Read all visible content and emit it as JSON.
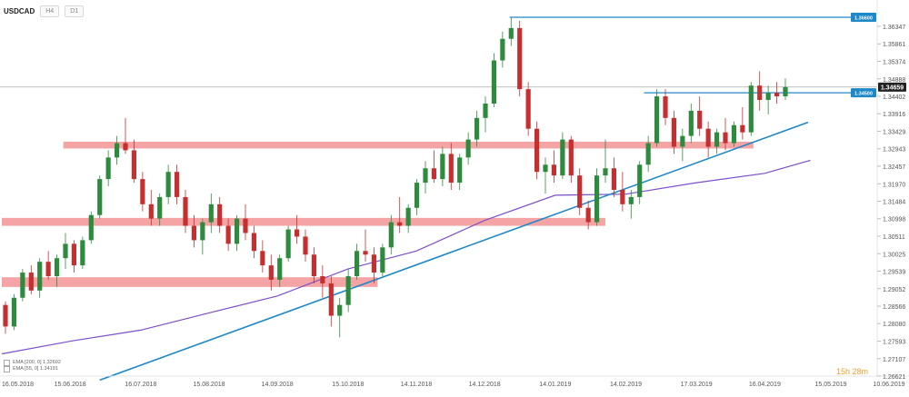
{
  "header": {
    "symbol": "USDCAD",
    "timeframe": "H4",
    "timeframe2": "D1"
  },
  "legend": [
    {
      "label": "EMA [200, 0] 1.32692",
      "color": "#7b4fc9"
    },
    {
      "label": "EMA [55, 0] 1.34191",
      "color": "#4a90d9"
    }
  ],
  "timer": "15h 28m",
  "chart_data": {
    "type": "candlestick",
    "symbol": "USDCAD",
    "x_tick_labels": [
      "16.05.2018",
      "15.06.2018",
      "16.07.2018",
      "15.08.2018",
      "14.09.2018",
      "15.10.2018",
      "14.11.2018",
      "14.12.2018",
      "14.01.2019",
      "14.02.2019",
      "17.03.2019",
      "16.04.2019",
      "15.05.2019",
      "10.06.2019"
    ],
    "y_tick_labels": [
      "1.36347",
      "1.35861",
      "1.35374",
      "1.34888",
      "1.34402",
      "1.33916",
      "1.33429",
      "1.32943",
      "1.32457",
      "1.31970",
      "1.31484",
      "1.30998",
      "1.30511",
      "1.30025",
      "1.29539",
      "1.29052",
      "1.28566",
      "1.28080",
      "1.27593",
      "1.27107",
      "1.26621"
    ],
    "ylim": [
      1.26621,
      1.36347
    ],
    "current_price": "1.34659",
    "price_labels": [
      {
        "text": "1.36600",
        "value": 1.366,
        "color": "#1e88c8"
      },
      {
        "text": "1.34500",
        "value": 1.345,
        "color": "#1e88c8"
      },
      {
        "text": "1.34659",
        "value": 1.34659,
        "color": "#222222"
      }
    ],
    "support_resistance_zones": [
      {
        "from": 1.3295,
        "to": 1.3314,
        "start": "12.06.2018",
        "end": "11.04.2019"
      },
      {
        "from": 1.308,
        "to": 1.3102,
        "start": "16.05.2018",
        "end": "05.02.2019"
      },
      {
        "from": 1.291,
        "to": 1.2937,
        "start": "16.05.2018",
        "end": "28.10.2018"
      }
    ],
    "trendline": {
      "from": {
        "date": "28.06.2018",
        "value": 1.2651
      },
      "to": {
        "date": "05.05.2019",
        "value": 1.3368
      }
    },
    "horizontal_lines": [
      {
        "value": 1.366,
        "start": "25.12.2018"
      },
      {
        "value": 1.345,
        "start": "22.02.2019"
      }
    ],
    "series": [
      {
        "name": "EMA [200, 0]",
        "color": "#7b4fc9",
        "type": "line",
        "points": [
          {
            "d": "16.05.2018",
            "v": 1.2724
          },
          {
            "d": "16.06.2018",
            "v": 1.276
          },
          {
            "d": "16.07.2018",
            "v": 1.279
          },
          {
            "d": "15.08.2018",
            "v": 1.2838
          },
          {
            "d": "14.09.2018",
            "v": 1.2885
          },
          {
            "d": "15.10.2018",
            "v": 1.296
          },
          {
            "d": "14.11.2018",
            "v": 1.301
          },
          {
            "d": "14.12.2018",
            "v": 1.3095
          },
          {
            "d": "14.01.2019",
            "v": 1.3165
          },
          {
            "d": "14.02.2019",
            "v": 1.3168
          },
          {
            "d": "17.03.2019",
            "v": 1.32
          },
          {
            "d": "16.04.2019",
            "v": 1.3226
          },
          {
            "d": "06.05.2019",
            "v": 1.3262
          }
        ]
      }
    ],
    "candles": [
      {
        "o": 1.286,
        "h": 1.287,
        "l": 1.278,
        "c": 1.28
      },
      {
        "o": 1.28,
        "h": 1.289,
        "l": 1.279,
        "c": 1.288
      },
      {
        "o": 1.288,
        "h": 1.296,
        "l": 1.287,
        "c": 1.295
      },
      {
        "o": 1.295,
        "h": 1.297,
        "l": 1.289,
        "c": 1.29
      },
      {
        "o": 1.29,
        "h": 1.299,
        "l": 1.288,
        "c": 1.298
      },
      {
        "o": 1.298,
        "h": 1.301,
        "l": 1.293,
        "c": 1.294
      },
      {
        "o": 1.294,
        "h": 1.3,
        "l": 1.291,
        "c": 1.299
      },
      {
        "o": 1.299,
        "h": 1.306,
        "l": 1.296,
        "c": 1.303
      },
      {
        "o": 1.303,
        "h": 1.304,
        "l": 1.295,
        "c": 1.297
      },
      {
        "o": 1.297,
        "h": 1.305,
        "l": 1.296,
        "c": 1.304
      },
      {
        "o": 1.304,
        "h": 1.312,
        "l": 1.303,
        "c": 1.311
      },
      {
        "o": 1.311,
        "h": 1.322,
        "l": 1.31,
        "c": 1.321
      },
      {
        "o": 1.321,
        "h": 1.329,
        "l": 1.319,
        "c": 1.327
      },
      {
        "o": 1.327,
        "h": 1.333,
        "l": 1.325,
        "c": 1.331
      },
      {
        "o": 1.331,
        "h": 1.338,
        "l": 1.328,
        "c": 1.329
      },
      {
        "o": 1.329,
        "h": 1.332,
        "l": 1.32,
        "c": 1.321
      },
      {
        "o": 1.321,
        "h": 1.323,
        "l": 1.312,
        "c": 1.314
      },
      {
        "o": 1.314,
        "h": 1.318,
        "l": 1.308,
        "c": 1.31
      },
      {
        "o": 1.31,
        "h": 1.317,
        "l": 1.308,
        "c": 1.316
      },
      {
        "o": 1.316,
        "h": 1.325,
        "l": 1.314,
        "c": 1.323
      },
      {
        "o": 1.323,
        "h": 1.325,
        "l": 1.314,
        "c": 1.316
      },
      {
        "o": 1.316,
        "h": 1.318,
        "l": 1.306,
        "c": 1.308
      },
      {
        "o": 1.308,
        "h": 1.311,
        "l": 1.302,
        "c": 1.304
      },
      {
        "o": 1.304,
        "h": 1.31,
        "l": 1.3,
        "c": 1.309
      },
      {
        "o": 1.309,
        "h": 1.317,
        "l": 1.306,
        "c": 1.314
      },
      {
        "o": 1.314,
        "h": 1.316,
        "l": 1.306,
        "c": 1.308
      },
      {
        "o": 1.308,
        "h": 1.31,
        "l": 1.301,
        "c": 1.303
      },
      {
        "o": 1.303,
        "h": 1.311,
        "l": 1.301,
        "c": 1.31
      },
      {
        "o": 1.31,
        "h": 1.314,
        "l": 1.304,
        "c": 1.306
      },
      {
        "o": 1.306,
        "h": 1.308,
        "l": 1.299,
        "c": 1.301
      },
      {
        "o": 1.301,
        "h": 1.304,
        "l": 1.295,
        "c": 1.297
      },
      {
        "o": 1.297,
        "h": 1.3,
        "l": 1.29,
        "c": 1.293
      },
      {
        "o": 1.293,
        "h": 1.3,
        "l": 1.291,
        "c": 1.299
      },
      {
        "o": 1.299,
        "h": 1.308,
        "l": 1.298,
        "c": 1.307
      },
      {
        "o": 1.307,
        "h": 1.311,
        "l": 1.303,
        "c": 1.305
      },
      {
        "o": 1.305,
        "h": 1.307,
        "l": 1.298,
        "c": 1.3
      },
      {
        "o": 1.3,
        "h": 1.302,
        "l": 1.292,
        "c": 1.294
      },
      {
        "o": 1.294,
        "h": 1.297,
        "l": 1.288,
        "c": 1.292
      },
      {
        "o": 1.292,
        "h": 1.294,
        "l": 1.28,
        "c": 1.283
      },
      {
        "o": 1.283,
        "h": 1.288,
        "l": 1.277,
        "c": 1.286
      },
      {
        "o": 1.286,
        "h": 1.296,
        "l": 1.284,
        "c": 1.294
      },
      {
        "o": 1.294,
        "h": 1.303,
        "l": 1.293,
        "c": 1.301
      },
      {
        "o": 1.301,
        "h": 1.307,
        "l": 1.298,
        "c": 1.3
      },
      {
        "o": 1.3,
        "h": 1.302,
        "l": 1.292,
        "c": 1.295
      },
      {
        "o": 1.295,
        "h": 1.303,
        "l": 1.294,
        "c": 1.302
      },
      {
        "o": 1.302,
        "h": 1.311,
        "l": 1.3,
        "c": 1.309
      },
      {
        "o": 1.309,
        "h": 1.316,
        "l": 1.306,
        "c": 1.308
      },
      {
        "o": 1.308,
        "h": 1.314,
        "l": 1.306,
        "c": 1.313
      },
      {
        "o": 1.313,
        "h": 1.321,
        "l": 1.311,
        "c": 1.32
      },
      {
        "o": 1.32,
        "h": 1.326,
        "l": 1.317,
        "c": 1.324
      },
      {
        "o": 1.324,
        "h": 1.329,
        "l": 1.32,
        "c": 1.321
      },
      {
        "o": 1.321,
        "h": 1.33,
        "l": 1.319,
        "c": 1.328
      },
      {
        "o": 1.328,
        "h": 1.331,
        "l": 1.318,
        "c": 1.32
      },
      {
        "o": 1.32,
        "h": 1.328,
        "l": 1.318,
        "c": 1.327
      },
      {
        "o": 1.327,
        "h": 1.334,
        "l": 1.325,
        "c": 1.332
      },
      {
        "o": 1.332,
        "h": 1.34,
        "l": 1.33,
        "c": 1.338
      },
      {
        "o": 1.338,
        "h": 1.344,
        "l": 1.334,
        "c": 1.342
      },
      {
        "o": 1.342,
        "h": 1.356,
        "l": 1.341,
        "c": 1.354
      },
      {
        "o": 1.354,
        "h": 1.362,
        "l": 1.352,
        "c": 1.36
      },
      {
        "o": 1.36,
        "h": 1.366,
        "l": 1.358,
        "c": 1.363
      },
      {
        "o": 1.363,
        "h": 1.365,
        "l": 1.344,
        "c": 1.346
      },
      {
        "o": 1.346,
        "h": 1.348,
        "l": 1.333,
        "c": 1.335
      },
      {
        "o": 1.335,
        "h": 1.337,
        "l": 1.321,
        "c": 1.323
      },
      {
        "o": 1.323,
        "h": 1.327,
        "l": 1.317,
        "c": 1.325
      },
      {
        "o": 1.325,
        "h": 1.329,
        "l": 1.32,
        "c": 1.322
      },
      {
        "o": 1.322,
        "h": 1.334,
        "l": 1.321,
        "c": 1.332
      },
      {
        "o": 1.332,
        "h": 1.333,
        "l": 1.32,
        "c": 1.322
      },
      {
        "o": 1.322,
        "h": 1.324,
        "l": 1.311,
        "c": 1.313
      },
      {
        "o": 1.313,
        "h": 1.315,
        "l": 1.307,
        "c": 1.309
      },
      {
        "o": 1.309,
        "h": 1.324,
        "l": 1.308,
        "c": 1.322
      },
      {
        "o": 1.322,
        "h": 1.332,
        "l": 1.32,
        "c": 1.324
      },
      {
        "o": 1.324,
        "h": 1.327,
        "l": 1.316,
        "c": 1.318
      },
      {
        "o": 1.318,
        "h": 1.323,
        "l": 1.312,
        "c": 1.314
      },
      {
        "o": 1.314,
        "h": 1.318,
        "l": 1.31,
        "c": 1.316
      },
      {
        "o": 1.316,
        "h": 1.326,
        "l": 1.314,
        "c": 1.325
      },
      {
        "o": 1.325,
        "h": 1.333,
        "l": 1.323,
        "c": 1.331
      },
      {
        "o": 1.331,
        "h": 1.346,
        "l": 1.33,
        "c": 1.344
      },
      {
        "o": 1.344,
        "h": 1.346,
        "l": 1.336,
        "c": 1.338
      },
      {
        "o": 1.338,
        "h": 1.34,
        "l": 1.328,
        "c": 1.33
      },
      {
        "o": 1.33,
        "h": 1.335,
        "l": 1.326,
        "c": 1.333
      },
      {
        "o": 1.333,
        "h": 1.342,
        "l": 1.331,
        "c": 1.34
      },
      {
        "o": 1.34,
        "h": 1.344,
        "l": 1.333,
        "c": 1.335
      },
      {
        "o": 1.335,
        "h": 1.337,
        "l": 1.327,
        "c": 1.33
      },
      {
        "o": 1.33,
        "h": 1.335,
        "l": 1.328,
        "c": 1.334
      },
      {
        "o": 1.334,
        "h": 1.338,
        "l": 1.329,
        "c": 1.331
      },
      {
        "o": 1.331,
        "h": 1.337,
        "l": 1.33,
        "c": 1.336
      },
      {
        "o": 1.336,
        "h": 1.341,
        "l": 1.332,
        "c": 1.334
      },
      {
        "o": 1.334,
        "h": 1.348,
        "l": 1.333,
        "c": 1.347
      },
      {
        "o": 1.347,
        "h": 1.351,
        "l": 1.34,
        "c": 1.343
      },
      {
        "o": 1.343,
        "h": 1.347,
        "l": 1.339,
        "c": 1.345
      },
      {
        "o": 1.345,
        "h": 1.348,
        "l": 1.342,
        "c": 1.344
      },
      {
        "o": 1.344,
        "h": 1.349,
        "l": 1.343,
        "c": 1.3466
      }
    ]
  }
}
